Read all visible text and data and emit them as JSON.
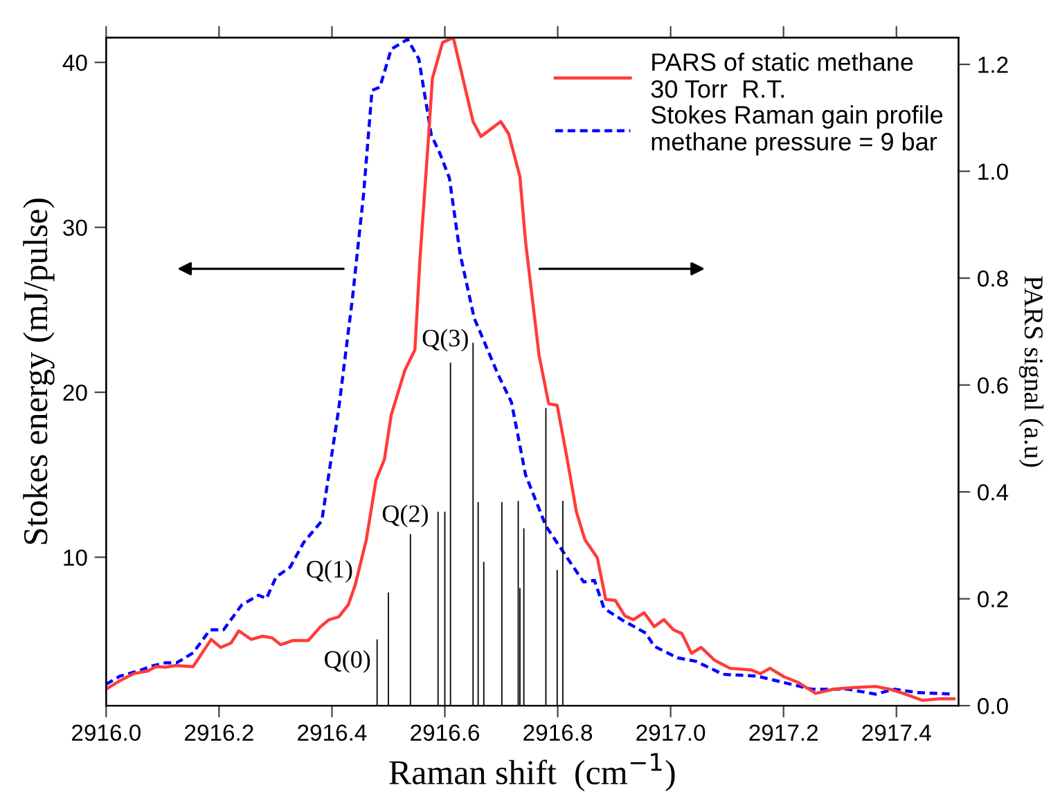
{
  "chart_data": {
    "type": "line",
    "xlabel": "Raman shift  (cm$^{−1}$)",
    "ylabel": "Stokes energy (mJ/pulse)",
    "y2label": "PARS signal (a.u)",
    "xlim": [
      2916.0,
      2917.51
    ],
    "xticks": [
      {
        "value": 2916,
        "label": "2916.0"
      },
      2916.2,
      2916.4,
      2916.6,
      2916.8,
      {
        "value": 2917,
        "label": "2917.0"
      },
      2917.2,
      2917.4
    ],
    "ylim": [
      1.0,
      41.5
    ],
    "yticks": [
      10,
      20,
      30,
      40
    ],
    "y2lim": [
      0.0,
      1.25
    ],
    "y2ticks": [
      {
        "value": 0,
        "label": "0.0"
      },
      0.2,
      0.4,
      0.6,
      0.8,
      {
        "value": 1,
        "label": "1.0"
      },
      1.2
    ],
    "grid": false,
    "legend": "top right",
    "marker": "none",
    "series": [
      {
        "name": "PARS of static methane\n30 Torr  R.T.",
        "axis": "y2",
        "color": "#ff3b3b",
        "line_style": "solid",
        "x": [
          2916.0,
          2916.025,
          2916.049,
          2916.074,
          2916.088,
          2916.105,
          2916.123,
          2916.154,
          2916.186,
          2916.203,
          2916.221,
          2916.235,
          2916.257,
          2916.277,
          2916.294,
          2916.309,
          2916.331,
          2916.358,
          2916.38,
          2916.395,
          2916.412,
          2916.429,
          2916.441,
          2916.461,
          2916.478,
          2916.493,
          2916.505,
          2916.529,
          2916.547,
          2916.556,
          2916.571,
          2916.578,
          2916.596,
          2916.615,
          2916.65,
          2916.664,
          2916.699,
          2916.713,
          2916.733,
          2916.743,
          2916.767,
          2916.784,
          2916.799,
          2916.816,
          2916.833,
          2916.848,
          2916.87,
          2916.885,
          2916.902,
          2916.919,
          2916.934,
          2916.953,
          2916.971,
          2916.988,
          2917.005,
          2917.02,
          2917.037,
          2917.054,
          2917.078,
          2917.105,
          2917.142,
          2917.159,
          2917.176,
          2917.201,
          2917.225,
          2917.257,
          2917.289,
          2917.324,
          2917.363,
          2917.387,
          2917.412,
          2917.446,
          2917.478,
          2917.502
        ],
        "values": [
          0.031,
          0.047,
          0.06,
          0.065,
          0.073,
          0.072,
          0.075,
          0.073,
          0.124,
          0.109,
          0.117,
          0.14,
          0.124,
          0.13,
          0.127,
          0.114,
          0.122,
          0.122,
          0.148,
          0.161,
          0.166,
          0.189,
          0.225,
          0.311,
          0.422,
          0.461,
          0.544,
          0.627,
          0.666,
          0.837,
          1.062,
          1.174,
          1.241,
          1.25,
          1.093,
          1.065,
          1.093,
          1.07,
          0.99,
          0.868,
          0.655,
          0.565,
          0.562,
          0.466,
          0.363,
          0.311,
          0.277,
          0.199,
          0.197,
          0.168,
          0.161,
          0.174,
          0.148,
          0.161,
          0.142,
          0.135,
          0.098,
          0.109,
          0.085,
          0.07,
          0.067,
          0.06,
          0.07,
          0.054,
          0.044,
          0.023,
          0.031,
          0.034,
          0.036,
          0.031,
          0.023,
          0.01,
          0.013,
          0.013
        ]
      },
      {
        "name": "Stokes Raman gain profile\nmethane pressure = 9 bar",
        "color": "#0000ff",
        "line_style": "dashed",
        "x": [
          2916.0,
          2916.025,
          2916.056,
          2916.081,
          2916.105,
          2916.125,
          2916.154,
          2916.184,
          2916.208,
          2916.24,
          2916.27,
          2916.284,
          2916.301,
          2916.326,
          2916.35,
          2916.382,
          2916.412,
          2916.436,
          2916.456,
          2916.471,
          2916.485,
          2916.505,
          2916.534,
          2916.554,
          2916.576,
          2916.591,
          2916.608,
          2916.627,
          2916.652,
          2916.694,
          2916.718,
          2916.743,
          2916.779,
          2916.816,
          2916.846,
          2916.865,
          2916.882,
          2916.914,
          2916.956,
          2916.971,
          2917.012,
          2917.044,
          2917.093,
          2917.152,
          2917.201,
          2917.25,
          2917.314,
          2917.363,
          2917.397,
          2917.436,
          2917.502
        ],
        "values": [
          2.3,
          2.8,
          3.1,
          3.4,
          3.6,
          3.6,
          4.2,
          5.6,
          5.6,
          7.1,
          7.7,
          7.5,
          8.8,
          9.4,
          10.9,
          12.2,
          19.0,
          25.6,
          32.0,
          38.3,
          38.5,
          40.8,
          41.4,
          40.2,
          35.6,
          34.5,
          33.0,
          28.4,
          24.5,
          21.1,
          19.4,
          15.0,
          11.9,
          10.0,
          8.5,
          8.6,
          6.9,
          6.2,
          5.4,
          4.6,
          3.9,
          3.7,
          2.9,
          2.8,
          2.4,
          2.0,
          2.0,
          1.7,
          2.0,
          1.8,
          1.7
        ]
      },
      {
        "type": "bar",
        "axis": "y2",
        "color": "#000000",
        "x": [
          2916.48,
          2916.5,
          2916.539,
          2916.588,
          2916.6,
          2916.61,
          2916.65,
          2916.659,
          2916.669,
          2916.701,
          2916.73,
          2916.733,
          2916.74,
          2916.779,
          2916.799,
          2916.809
        ],
        "values": [
          0.124,
          0.212,
          0.321,
          0.363,
          0.363,
          0.642,
          0.679,
          0.381,
          0.269,
          0.381,
          0.383,
          0.22,
          0.332,
          0.557,
          0.254,
          0.383
        ]
      }
    ],
    "annotations": [
      "Q(0)",
      "Q(1)",
      "Q(2)",
      "Q(3)"
    ]
  }
}
